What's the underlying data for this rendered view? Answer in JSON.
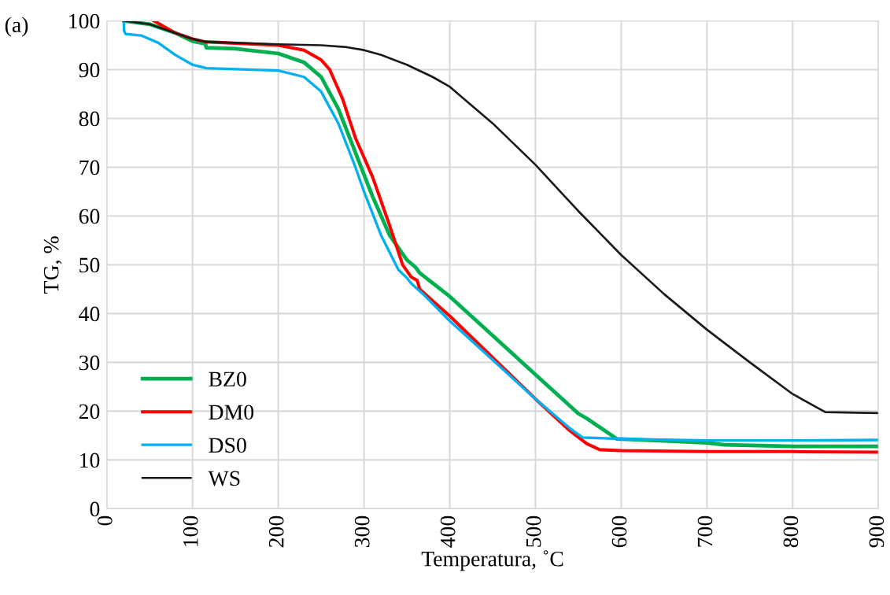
{
  "chart_data": {
    "type": "line",
    "xlabel": "Temperatura, ˚C",
    "ylabel": "TG, %",
    "annotations": [
      "(a)"
    ],
    "xlim": [
      0,
      900
    ],
    "xticks": [
      0,
      100,
      200,
      300,
      400,
      500,
      600,
      700,
      800,
      900
    ],
    "ylim": [
      0,
      100
    ],
    "yticks": [
      0,
      10,
      20,
      30,
      40,
      50,
      60,
      70,
      80,
      90,
      100
    ],
    "grid": true,
    "legend": "bottom left",
    "marker": "none",
    "line_style": "solid",
    "series": [
      {
        "name": "BZ0",
        "color": "#00b050",
        "x": [
          20,
          50,
          80,
          100,
          115,
          116,
          150,
          200,
          230,
          250,
          270,
          290,
          310,
          330,
          350,
          360,
          365,
          400,
          450,
          500,
          550,
          560,
          595,
          650,
          700,
          720,
          800,
          900
        ],
        "values": [
          100,
          99.3,
          97.5,
          95.8,
          95.3,
          94.5,
          94.3,
          93.3,
          91.5,
          88.5,
          82,
          73,
          64,
          56,
          51,
          49.5,
          48.3,
          43.5,
          35.5,
          27.5,
          19.5,
          18.5,
          14.3,
          13.9,
          13.5,
          13.1,
          12.8,
          12.8
        ]
      },
      {
        "name": "DM0",
        "color": "#ff0000",
        "x": [
          55,
          80,
          100,
          115,
          200,
          230,
          250,
          260,
          275,
          290,
          310,
          330,
          345,
          355,
          362,
          365,
          400,
          450,
          500,
          540,
          560,
          575,
          600,
          700,
          800,
          900
        ],
        "values": [
          100,
          97.5,
          96.3,
          95.7,
          95,
          94,
          92,
          90,
          84,
          76,
          68,
          58,
          50,
          47.5,
          46.8,
          45,
          39.5,
          31,
          22.5,
          16,
          13.3,
          12.1,
          11.9,
          11.7,
          11.7,
          11.6
        ]
      },
      {
        "name": "DS0",
        "color": "#00b0f0",
        "x": [
          20,
          20,
          22,
          40,
          60,
          80,
          100,
          116,
          200,
          230,
          250,
          270,
          290,
          300,
          320,
          340,
          350,
          355,
          370,
          400,
          450,
          500,
          540,
          555,
          600,
          700,
          800,
          900
        ],
        "values": [
          100,
          98,
          97.3,
          97,
          95.5,
          93,
          91,
          90.3,
          89.8,
          88.5,
          85.5,
          79,
          70,
          65,
          56,
          49,
          47.3,
          46.2,
          43.8,
          38.5,
          30.5,
          22.5,
          16.5,
          14.6,
          14.3,
          14,
          14,
          14.1
        ]
      },
      {
        "name": "WS",
        "color": "#1a1a1a",
        "x": [
          20,
          50,
          80,
          100,
          115,
          200,
          250,
          280,
          300,
          320,
          350,
          380,
          400,
          450,
          500,
          550,
          600,
          650,
          700,
          750,
          800,
          838,
          900
        ],
        "values": [
          100,
          99.3,
          97.5,
          96.3,
          95.7,
          95.2,
          95,
          94.6,
          94,
          93,
          91,
          88.5,
          86.5,
          79,
          70.5,
          61,
          52,
          44,
          36.7,
          30,
          23.5,
          19.8,
          19.6
        ]
      }
    ]
  }
}
